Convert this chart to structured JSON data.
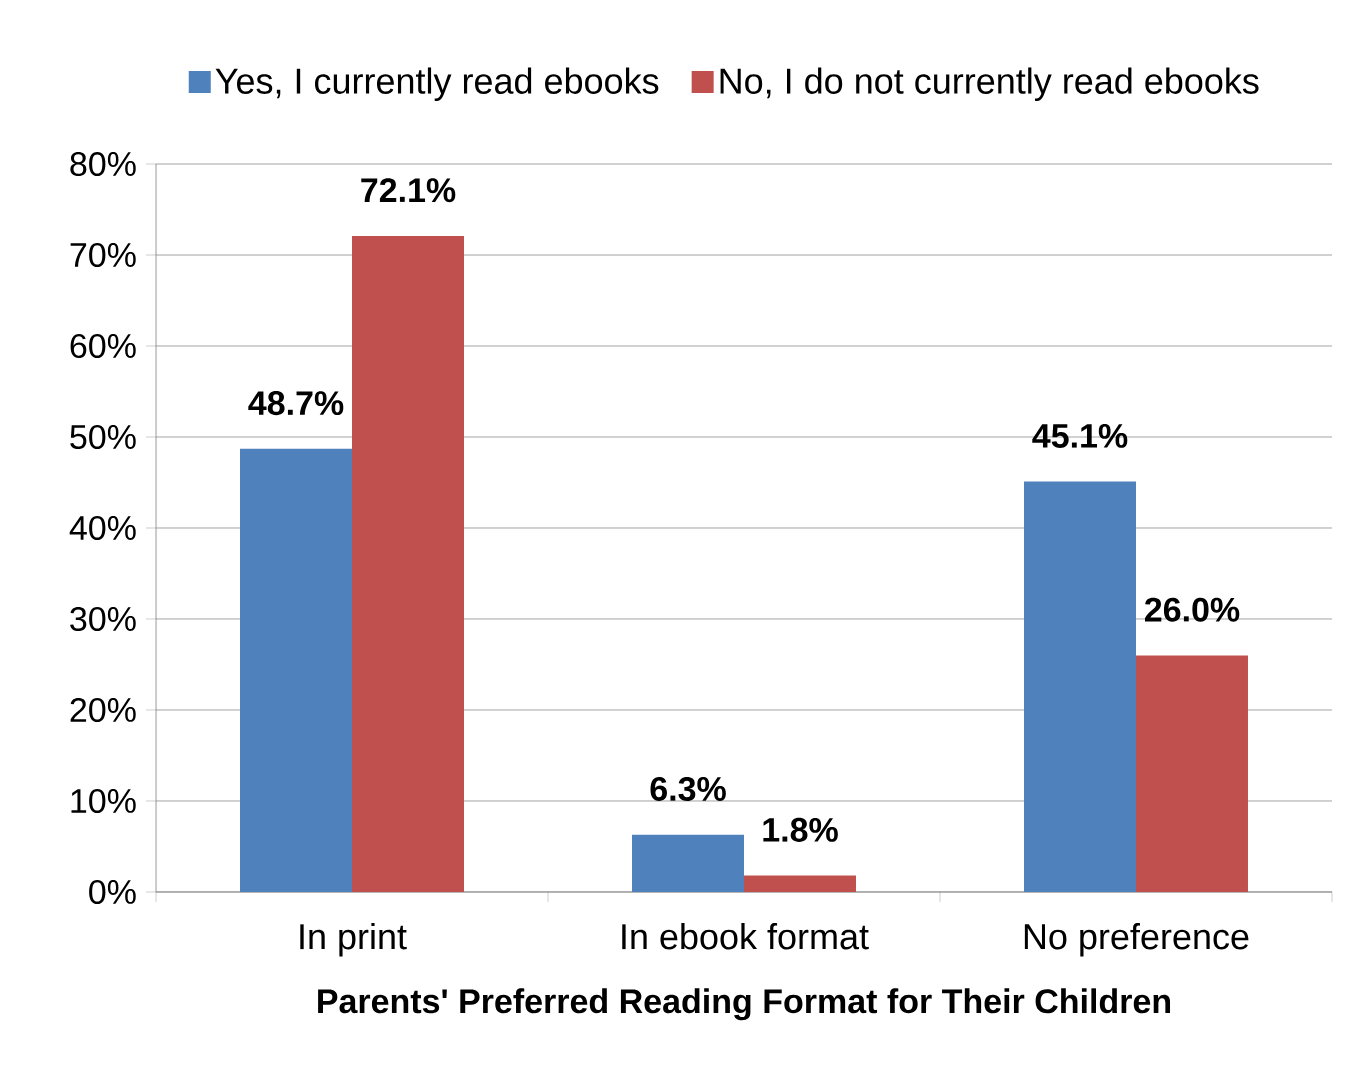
{
  "chart_data": {
    "type": "bar",
    "xlabel": "Parents' Preferred Reading Format for Their Children",
    "categories": [
      "In print",
      "In ebook format",
      "No preference"
    ],
    "series": [
      {
        "name": "Yes, I currently read ebooks",
        "color": "#4f81bd",
        "values": [
          48.7,
          6.3,
          45.1
        ],
        "value_labels": [
          "48.7%",
          "6.3%",
          "45.1%"
        ]
      },
      {
        "name": "No, I do not currently read ebooks",
        "color": "#c0504d",
        "values": [
          72.1,
          1.8,
          26.0
        ],
        "value_labels": [
          "72.1%",
          "1.8%",
          "26.0%"
        ]
      }
    ],
    "ylim": [
      0,
      80
    ],
    "yticks": [
      {
        "value": 0,
        "label": "0%"
      },
      {
        "value": 10,
        "label": "10%"
      },
      {
        "value": 20,
        "label": "20%"
      },
      {
        "value": 30,
        "label": "30%"
      },
      {
        "value": 40,
        "label": "40%"
      },
      {
        "value": 50,
        "label": "50%"
      },
      {
        "value": 60,
        "label": "60%"
      },
      {
        "value": 70,
        "label": "70%"
      },
      {
        "value": 80,
        "label": "80%"
      }
    ],
    "grid": "y",
    "legend": "top"
  }
}
